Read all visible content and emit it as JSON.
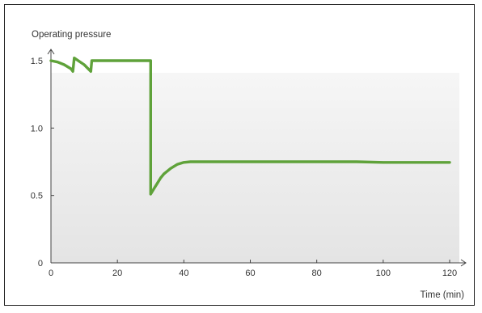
{
  "chart_data": {
    "type": "line",
    "title": "",
    "ylabel": "Operating pressure",
    "xlabel": "Time (min)",
    "xlim": [
      0,
      120
    ],
    "ylim": [
      0,
      1.5
    ],
    "x_ticks": [
      0,
      20,
      40,
      60,
      80,
      100,
      120
    ],
    "y_ticks": [
      0,
      0.5,
      1.0,
      1.5
    ],
    "x_tick_labels": [
      "0",
      "20",
      "40",
      "60",
      "80",
      "100",
      "120"
    ],
    "y_tick_labels": [
      "0",
      "0.5",
      "1.0",
      "1.5"
    ],
    "grid": false,
    "legend": "none",
    "series": [
      {
        "color": "#5fa23a",
        "x": [
          0,
          2,
          4,
          6,
          6.6,
          7,
          10,
          12,
          12.3,
          30,
          30,
          31,
          32,
          33,
          34,
          35,
          36,
          37,
          38,
          40,
          42,
          44,
          60,
          80,
          92,
          100,
          120
        ],
        "y": [
          1.5,
          1.49,
          1.47,
          1.44,
          1.42,
          1.52,
          1.47,
          1.42,
          1.5,
          1.5,
          0.51,
          0.55,
          0.59,
          0.63,
          0.66,
          0.68,
          0.7,
          0.715,
          0.73,
          0.745,
          0.75,
          0.75,
          0.75,
          0.75,
          0.75,
          0.745,
          0.745
        ]
      }
    ]
  }
}
